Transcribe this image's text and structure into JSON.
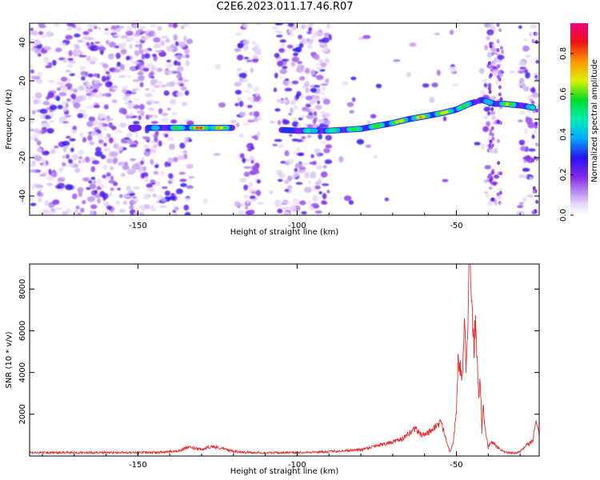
{
  "title": "C2E6.2023.011.17.46.R07",
  "colors": {
    "snr_line": "#e53030",
    "axes": "#000000"
  },
  "chart_data": [
    {
      "type": "heatmap",
      "title": "C2E6.2023.011.17.46.R07",
      "xlabel": "Height of straight line (km)",
      "ylabel": "Frequency (Hz)",
      "xlim": [
        -184,
        -24
      ],
      "ylim": [
        -50,
        50
      ],
      "xticks": [
        "-150",
        "-100",
        "-50"
      ],
      "yticks": [
        "-40",
        "-20",
        "0",
        "20",
        "40"
      ],
      "colorbar": {
        "label": "Normalized spectral amplitude",
        "range": [
          0,
          0.95
        ],
        "ticks": [
          "0.0",
          "0.2",
          "0.4",
          "0.6",
          "0.8"
        ],
        "colormap": "rainbow (white-violet-blue-cyan-green-yellow-orange-red-magenta)"
      },
      "ridge": {
        "x": [
          -152,
          -145,
          -140,
          -135,
          -130,
          -125,
          -120,
          -106,
          -100,
          -95,
          -90,
          -85,
          -80,
          -75,
          -70,
          -65,
          -60,
          -55,
          -50,
          -46,
          -42,
          -38,
          -35,
          -32,
          -29,
          -26
        ],
        "y": [
          -4.5,
          -4.5,
          -4.5,
          -4.5,
          -4.5,
          -4.5,
          -4.5,
          -5.5,
          -6,
          -6,
          -6,
          -5.5,
          -5,
          -3.5,
          -2,
          0,
          1.5,
          3,
          5,
          8,
          10,
          8,
          8,
          7.5,
          7,
          6
        ],
        "amplitude": [
          0.3,
          0.45,
          0.5,
          0.8,
          0.95,
          0.85,
          0.55,
          0.3,
          0.5,
          0.55,
          0.55,
          0.6,
          0.65,
          0.7,
          0.75,
          0.8,
          0.8,
          0.8,
          0.8,
          0.55,
          0.45,
          0.5,
          0.9,
          0.55,
          0.5,
          0.5
        ]
      }
    },
    {
      "type": "line",
      "xlabel": "Height of straight line (km)",
      "ylabel": "SNR (10 * v/v)",
      "xlim": [
        -184,
        -24
      ],
      "ylim": [
        0,
        9200
      ],
      "xticks": [
        "-150",
        "-100",
        "-50"
      ],
      "yticks": [
        "2000",
        "4000",
        "6000",
        "8000"
      ],
      "series": [
        {
          "x": [
            -184,
            -170,
            -160,
            -150,
            -142,
            -137,
            -134,
            -130,
            -127,
            -124,
            -120,
            -115,
            -110,
            -100,
            -90,
            -80,
            -74,
            -70,
            -66,
            -63,
            -61,
            -59,
            -57,
            -55,
            -54,
            -53,
            -52,
            -51,
            -50,
            -49.5,
            -49,
            -48.5,
            -48,
            -47.5,
            -47,
            -46.5,
            -46,
            -45.5,
            -45,
            -44.5,
            -44,
            -43.5,
            -43,
            -42.5,
            -42,
            -41.5,
            -41,
            -40,
            -39,
            -38,
            -36,
            -34,
            -32,
            -30,
            -28,
            -26,
            -25,
            -24
          ],
          "y": [
            160,
            160,
            160,
            170,
            180,
            260,
            420,
            300,
            460,
            380,
            220,
            170,
            150,
            170,
            210,
            300,
            550,
            650,
            900,
            1350,
            1000,
            1100,
            1350,
            1600,
            1250,
            700,
            180,
            700,
            2000,
            4700,
            4000,
            4300,
            3600,
            7300,
            4000,
            6000,
            9100,
            8200,
            7000,
            5100,
            6700,
            4300,
            2600,
            3800,
            1200,
            2500,
            1300,
            400,
            700,
            550,
            250,
            160,
            150,
            200,
            500,
            700,
            1800,
            900
          ]
        }
      ]
    }
  ]
}
